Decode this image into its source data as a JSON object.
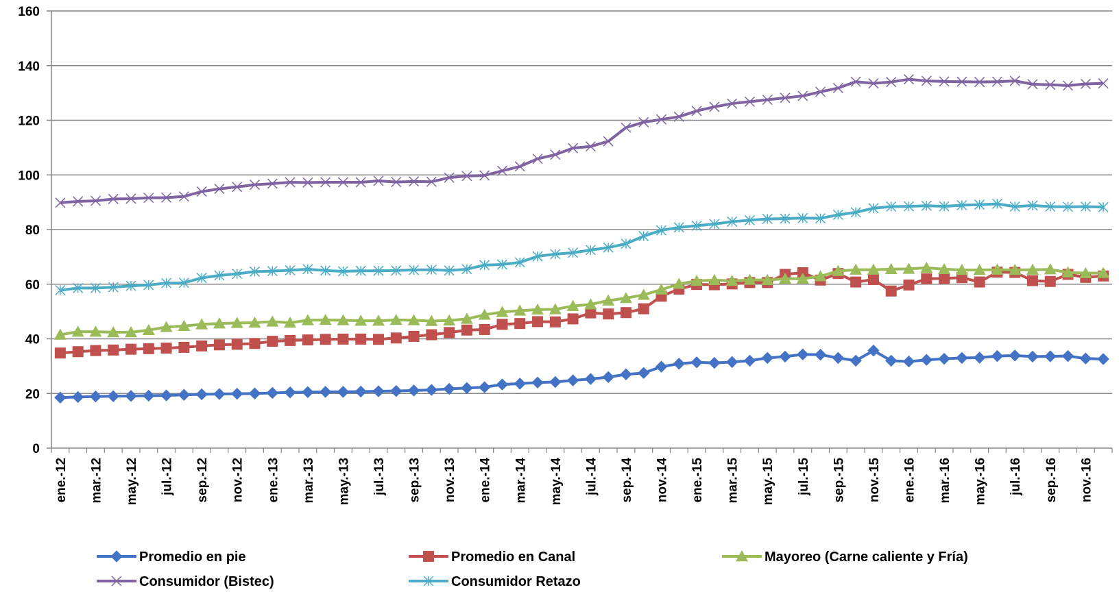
{
  "chart_data": {
    "type": "line",
    "title": "",
    "xlabel": "",
    "ylabel": "",
    "ylim": [
      0,
      160
    ],
    "yticks": [
      0,
      20,
      40,
      60,
      80,
      100,
      120,
      140,
      160
    ],
    "grid": true,
    "legend_position": "bottom",
    "x_tick_labels": [
      "ene.-12",
      "mar.-12",
      "may.-12",
      "jul.-12",
      "sep.-12",
      "nov.-12",
      "ene.-13",
      "mar.-13",
      "may.-13",
      "jul.-13",
      "sep.-13",
      "nov.-13",
      "ene.-14",
      "mar.-14",
      "may.-14",
      "jul.-14",
      "sep.-14",
      "nov.-14",
      "ene.-15",
      "mar.-15",
      "may.-15",
      "jul.-15",
      "sep.-15",
      "nov.-15",
      "ene.-16",
      "mar.-16",
      "may.-16",
      "jul.-16",
      "sep.-16",
      "nov.-16"
    ],
    "series": [
      {
        "name": "Promedio en pie",
        "color": "#4472C4",
        "marker": "diamond",
        "values": [
          18.5,
          18.7,
          18.9,
          19.0,
          19.1,
          19.2,
          19.3,
          19.5,
          19.7,
          19.8,
          19.9,
          20.0,
          20.2,
          20.4,
          20.5,
          20.6,
          20.6,
          20.7,
          20.8,
          20.9,
          21.1,
          21.3,
          21.7,
          22.0,
          22.3,
          23.3,
          23.6,
          24.0,
          24.2,
          24.8,
          25.3,
          26.0,
          27.0,
          27.5,
          29.8,
          30.9,
          31.4,
          31.2,
          31.5,
          32.0,
          33.0,
          33.5,
          34.3,
          34.2,
          33.0,
          32.0,
          35.7,
          32.0,
          31.7,
          32.3,
          32.7,
          33.0,
          33.1,
          33.7,
          33.9,
          33.5,
          33.6,
          33.7,
          32.8,
          32.6
        ]
      },
      {
        "name": "Promedio en Canal",
        "color": "#C0504D",
        "marker": "square",
        "values": [
          34.8,
          35.3,
          35.7,
          35.9,
          36.2,
          36.4,
          36.6,
          36.9,
          37.4,
          37.8,
          38.0,
          38.3,
          39.1,
          39.4,
          39.6,
          39.8,
          39.9,
          39.9,
          39.8,
          40.3,
          40.9,
          41.5,
          42.3,
          43.2,
          43.4,
          45.3,
          45.6,
          46.3,
          46.2,
          47.3,
          49.5,
          49.1,
          49.6,
          51.0,
          55.6,
          58.2,
          59.9,
          59.8,
          60.1,
          60.6,
          60.6,
          63.6,
          64.2,
          61.5,
          63.9,
          60.8,
          61.7,
          57.5,
          59.7,
          62.0,
          62.1,
          62.4,
          60.8,
          64.4,
          64.3,
          61.3,
          61.0,
          63.6,
          62.5,
          63.0
        ]
      },
      {
        "name": "Mayoreo (Carne caliente y Fría)",
        "color": "#9BBB59",
        "marker": "triangle",
        "values": [
          41.5,
          42.6,
          42.6,
          42.4,
          42.4,
          43.2,
          44.3,
          44.7,
          45.3,
          45.6,
          45.8,
          45.9,
          46.3,
          45.9,
          46.8,
          46.9,
          46.8,
          46.6,
          46.6,
          46.9,
          46.8,
          46.5,
          46.7,
          47.3,
          48.8,
          49.8,
          50.3,
          50.7,
          50.8,
          52.0,
          52.6,
          54.0,
          54.9,
          56.1,
          58.0,
          60.1,
          61.2,
          61.5,
          61.2,
          61.6,
          61.5,
          62.0,
          62.0,
          62.9,
          64.8,
          65.3,
          65.3,
          65.5,
          65.6,
          66.0,
          65.5,
          65.2,
          65.2,
          65.3,
          65.2,
          65.3,
          65.4,
          64.3,
          64.0,
          64.1
        ]
      },
      {
        "name": "Consumidor (Bistec)",
        "color": "#8064A2",
        "marker": "x",
        "values": [
          89.8,
          90.3,
          90.5,
          91.2,
          91.3,
          91.6,
          91.7,
          92.1,
          93.9,
          94.9,
          95.6,
          96.4,
          96.8,
          97.3,
          97.2,
          97.3,
          97.3,
          97.3,
          97.8,
          97.4,
          97.6,
          97.5,
          99.0,
          99.6,
          99.8,
          101.5,
          103.1,
          105.9,
          107.4,
          109.8,
          110.4,
          112.3,
          117.3,
          119.3,
          120.3,
          121.3,
          123.4,
          124.9,
          126.1,
          126.8,
          127.5,
          128.2,
          128.9,
          130.4,
          131.8,
          134.1,
          133.5,
          134.0,
          135.0,
          134.4,
          134.2,
          134.1,
          134.0,
          134.1,
          134.4,
          133.2,
          133.0,
          132.7,
          133.3,
          133.5
        ]
      },
      {
        "name": "Consumidor Retazo",
        "color": "#4BACC6",
        "marker": "star",
        "values": [
          57.8,
          58.6,
          58.6,
          58.9,
          59.4,
          59.7,
          60.4,
          60.5,
          62.3,
          63.2,
          63.8,
          64.6,
          64.8,
          65.1,
          65.5,
          65.0,
          64.7,
          64.9,
          64.9,
          65.0,
          65.2,
          65.3,
          65.0,
          65.5,
          67.0,
          67.2,
          68.0,
          70.2,
          71.0,
          71.5,
          72.5,
          73.4,
          74.8,
          77.6,
          79.7,
          80.8,
          81.4,
          82.0,
          82.9,
          83.4,
          83.9,
          84.0,
          84.2,
          84.1,
          85.4,
          86.3,
          87.8,
          88.4,
          88.5,
          88.7,
          88.5,
          88.9,
          89.1,
          89.4,
          88.4,
          88.8,
          88.4,
          88.3,
          88.4,
          88.2
        ]
      }
    ]
  }
}
